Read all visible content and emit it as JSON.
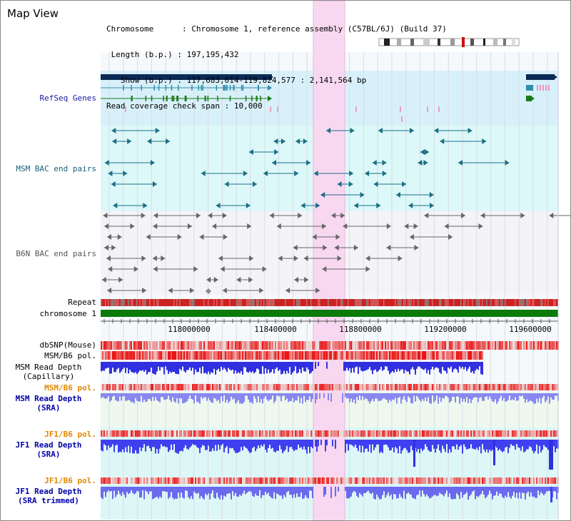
{
  "header": {
    "title": "Map View",
    "chromosome_key": "Chromosome",
    "chromosome_value": "Chromosome 1, reference assembly (C57BL/6J) (Build 37)",
    "length_key": "Length (b.p.)",
    "length_value": "197,195,432",
    "show_key": "Show (b.p.)",
    "show_value": "117,683,014-119,824,577 : 2,141,564 bp",
    "coverage_key": "Read coverage check span",
    "coverage_value": "10,000"
  },
  "tracks": {
    "refseq": "RefSeq Genes",
    "msm_bac": "MSM BAC end pairs",
    "b6n_bac": "B6N BAC end pairs",
    "repeat": "Repeat",
    "chromosome": "chromosome 1",
    "dbsnp": "dbSNP(Mouse)",
    "msm_b6_pol": "MSM/B6 pol.",
    "msm_read_depth_cap_1": "MSM Read Depth",
    "msm_read_depth_cap_2": "(Capillary)",
    "msm_b6_pol_2": "MSM/B6 pol.",
    "msm_read_depth_sra_1": "MSM Read Depth",
    "msm_read_depth_sra_2": "(SRA)",
    "jf1_b6_pol": "JF1/B6 pol.",
    "jf1_read_depth_sra_1": "JF1 Read Depth",
    "jf1_read_depth_sra_2": "(SRA)",
    "jf1_b6_pol_2": "JF1/B6 pol.",
    "jf1_read_depth_trim_1": "JF1 Read Depth",
    "jf1_read_depth_trim_2": "(SRA trimmed)"
  },
  "axis": {
    "ticks": [
      "118000000",
      "118400000",
      "118800000",
      "119200000",
      "119600000"
    ]
  },
  "colors": {
    "refseq_label": "#1a1aa0",
    "msm_label": "#1a5f7a",
    "b6n_label": "#555555",
    "pol_label": "#e08800",
    "depth_label": "#0000aa",
    "highlight": "#f8d8f0",
    "refseq_bg": "#d8f0fa",
    "chromosome_bar": "#0a7a0a",
    "depth_bar": "#4444ee",
    "gene_navy": "#0b2a55",
    "gene_teal": "#2f8fa8",
    "gene_green": "#1a7a1a",
    "bac_teal": "#1b6e86",
    "bac_gray": "#666666"
  }
}
